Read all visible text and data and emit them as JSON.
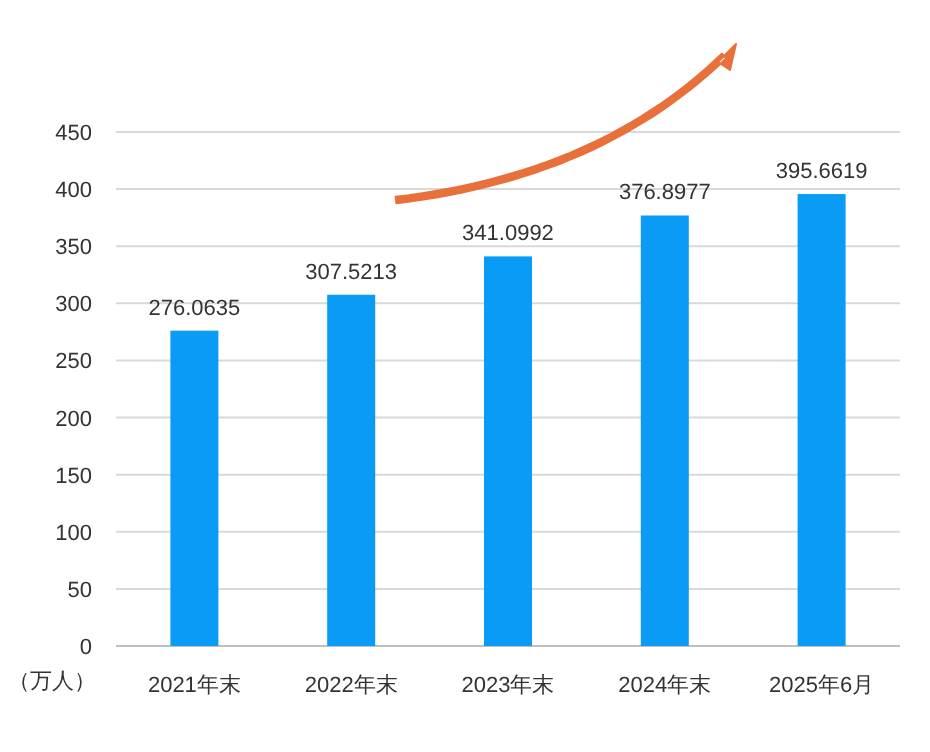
{
  "chart_data": {
    "type": "bar",
    "ylabel": "（万人）",
    "categories": [
      "2021年末",
      "2022年末",
      "2023年末",
      "2024年末",
      "2025年6月"
    ],
    "values": [
      276.0635,
      307.5213,
      341.0992,
      376.8977,
      395.6619
    ],
    "color": "#0a9bf7",
    "ylim": [
      0,
      450
    ],
    "yticks": [
      0,
      50,
      100,
      150,
      200,
      250,
      300,
      350,
      400,
      450
    ],
    "grid": "y",
    "data_labels": true
  }
}
